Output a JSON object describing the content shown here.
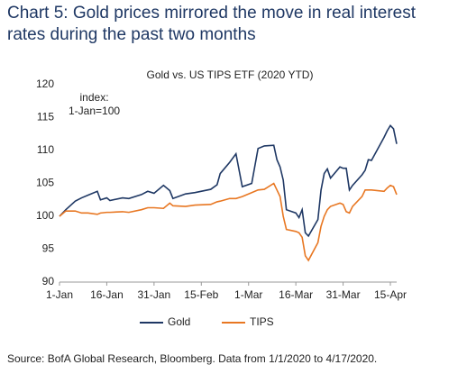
{
  "chart_data": {
    "type": "line",
    "title": "Chart 5: Gold prices mirrored the move in real interest rates during the past two months",
    "subtitle": "Gold vs. US TIPS ETF (2020 YTD)",
    "annotation": "index:\n1-Jan=100",
    "source": "Source: BofA Global Research, Bloomberg. Data from 1/1/2020 to 4/17/2020.",
    "x": [
      "1-Jan",
      "3-Jan",
      "6-Jan",
      "8-Jan",
      "10-Jan",
      "13-Jan",
      "14-Jan",
      "16-Jan",
      "17-Jan",
      "21-Jan",
      "23-Jan",
      "27-Jan",
      "29-Jan",
      "31-Jan",
      "3-Feb",
      "5-Feb",
      "6-Feb",
      "10-Feb",
      "13-Feb",
      "18-Feb",
      "20-Feb",
      "21-Feb",
      "24-Feb",
      "26-Feb",
      "28-Feb",
      "2-Mar",
      "4-Mar",
      "6-Mar",
      "9-Mar",
      "10-Mar",
      "11-Mar",
      "12-Mar",
      "13-Mar",
      "16-Mar",
      "17-Mar",
      "18-Mar",
      "19-Mar",
      "20-Mar",
      "23-Mar",
      "24-Mar",
      "25-Mar",
      "26-Mar",
      "27-Mar",
      "30-Mar",
      "31-Mar",
      "1-Apr",
      "2-Apr",
      "3-Apr",
      "6-Apr",
      "7-Apr",
      "8-Apr",
      "9-Apr",
      "13-Apr",
      "14-Apr",
      "15-Apr",
      "16-Apr",
      "17-Apr"
    ],
    "series": [
      {
        "name": "Gold",
        "color": "#1f3864",
        "values": [
          100,
          101,
          102.3,
          102.8,
          103.2,
          103.8,
          102.5,
          102.8,
          102.4,
          102.8,
          102.7,
          103.3,
          103.8,
          103.5,
          104.7,
          103.9,
          102.7,
          103.4,
          103.6,
          104.1,
          104.8,
          106.5,
          108.2,
          109.5,
          104.5,
          105,
          110.3,
          110.7,
          110.8,
          108.6,
          107.5,
          105.5,
          101,
          100.5,
          99.8,
          101,
          97.5,
          97,
          99.5,
          104,
          106.5,
          107.2,
          105.8,
          107.5,
          107.3,
          107.3,
          104,
          104.7,
          106.3,
          107,
          108.6,
          108.5,
          112,
          113,
          113.8,
          113.3,
          111
        ]
      },
      {
        "name": "TIPS",
        "color": "#e87722",
        "values": [
          100,
          100.8,
          100.8,
          100.5,
          100.5,
          100.3,
          100.5,
          100.6,
          100.6,
          100.7,
          100.6,
          101,
          101.3,
          101.3,
          101.2,
          102,
          101.6,
          101.5,
          101.7,
          101.8,
          102.2,
          102.3,
          102.7,
          102.7,
          103,
          103.6,
          104,
          104.1,
          105,
          104,
          103,
          100,
          98,
          97.7,
          97.5,
          96.8,
          94,
          93.3,
          96,
          98.5,
          100,
          101,
          101.5,
          102,
          101.8,
          100.7,
          100.5,
          101.5,
          103,
          104,
          104,
          104,
          103.8,
          104.3,
          104.7,
          104.5,
          103.3
        ]
      }
    ],
    "xlim": [
      "1-Jan",
      "17-Apr"
    ],
    "xticks": [
      "1-Jan",
      "16-Jan",
      "31-Jan",
      "15-Feb",
      "1-Mar",
      "16-Mar",
      "31-Mar",
      "15-Apr"
    ],
    "ylim": [
      90,
      120
    ],
    "yticks": [
      90,
      95,
      100,
      105,
      110,
      115,
      120
    ],
    "grid": false,
    "legend": "bottom"
  }
}
